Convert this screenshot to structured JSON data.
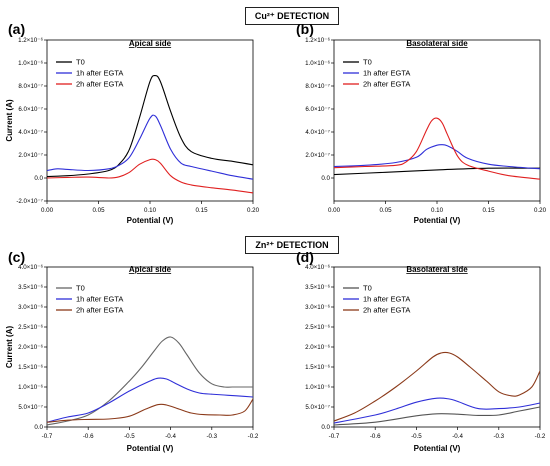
{
  "sections": {
    "cu_title": "Cu²⁺ DETECTION",
    "zn_title": "Zn²⁺ DETECTION"
  },
  "chart_data": [
    {
      "type": "line",
      "panel": "(a)",
      "title": "Apical side",
      "xlabel": "Potential (V)",
      "ylabel": "Current (A)",
      "xlim": [
        0.0,
        0.2
      ],
      "ylim": [
        -2e-07,
        1.2e-06
      ],
      "x_ticks": [
        0.0,
        0.05,
        0.1,
        0.15,
        0.2
      ],
      "x_tick_labels": [
        "0.00",
        "0.05",
        "0.10",
        "0.15",
        "0.20"
      ],
      "y_ticks": [
        -2e-07,
        0,
        2e-07,
        4e-07,
        6e-07,
        8e-07,
        1e-06,
        1.2e-06
      ],
      "y_tick_labels": [
        "-2.0×10⁻⁷",
        "0.0",
        "2.0×10⁻⁷",
        "4.0×10⁻⁷",
        "6.0×10⁻⁷",
        "8.0×10⁻⁷",
        "1.0×10⁻⁶",
        "1.2×10⁻⁶"
      ],
      "legend": "top-left",
      "series": [
        {
          "name": "T0",
          "color": "#000000",
          "x": [
            0.0,
            0.02,
            0.04,
            0.06,
            0.07,
            0.08,
            0.09,
            0.1,
            0.105,
            0.11,
            0.12,
            0.13,
            0.14,
            0.16,
            0.18,
            0.2
          ],
          "y": [
            1.2e-08,
            2e-08,
            3.5e-08,
            6.5e-08,
            1.2e-07,
            2.5e-07,
            5.3e-07,
            8.4e-07,
            8.9e-07,
            8.4e-07,
            5.8e-07,
            3.5e-07,
            2.3e-07,
            1.7e-07,
            1.45e-07,
            1.15e-07
          ]
        },
        {
          "name": "1h after EGTA",
          "color": "#2f2fd8",
          "x": [
            0.0,
            0.01,
            0.02,
            0.04,
            0.06,
            0.07,
            0.08,
            0.09,
            0.1,
            0.105,
            0.11,
            0.12,
            0.13,
            0.14,
            0.16,
            0.18,
            0.2
          ],
          "y": [
            6.5e-08,
            8e-08,
            7.5e-08,
            6.5e-08,
            8e-08,
            1.1e-07,
            1.8e-07,
            3.4e-07,
            5.2e-07,
            5.4e-07,
            4.6e-07,
            2.5e-07,
            1.3e-07,
            1e-07,
            6e-08,
            2e-08,
            -1e-08
          ]
        },
        {
          "name": "2h after EGTA",
          "color": "#e02020",
          "x": [
            0.0,
            0.02,
            0.04,
            0.06,
            0.07,
            0.08,
            0.09,
            0.1,
            0.105,
            0.11,
            0.12,
            0.13,
            0.14,
            0.16,
            0.18,
            0.2
          ],
          "y": [
            0.0,
            5e-09,
            8e-09,
            0.0,
            1e-08,
            5e-08,
            1.2e-07,
            1.6e-07,
            1.6e-07,
            1.3e-07,
            2e-08,
            -3.5e-08,
            -6e-08,
            -8.5e-08,
            -1.05e-07,
            -1.3e-07
          ]
        }
      ]
    },
    {
      "type": "line",
      "panel": "(b)",
      "title": "Basolateral side",
      "xlabel": "Potential (V)",
      "ylabel": "",
      "xlim": [
        0.0,
        0.2
      ],
      "ylim": [
        -2e-07,
        1.2e-06
      ],
      "x_ticks": [
        0.0,
        0.05,
        0.1,
        0.15,
        0.2
      ],
      "x_tick_labels": [
        "0.00",
        "0.05",
        "0.10",
        "0.15",
        "0.20"
      ],
      "y_ticks": [
        0,
        2e-07,
        4e-07,
        6e-07,
        8e-07,
        1e-06,
        1.2e-06
      ],
      "y_tick_labels": [
        "0.0",
        "2.0×10⁻⁷",
        "4.0×10⁻⁷",
        "6.0×10⁻⁷",
        "8.0×10⁻⁷",
        "1.0×10⁻⁶",
        "1.2×10⁻⁶"
      ],
      "legend": "top-left",
      "series": [
        {
          "name": "T0",
          "color": "#000000",
          "x": [
            0.0,
            0.05,
            0.1,
            0.15,
            0.2
          ],
          "y": [
            3e-08,
            5e-08,
            7e-08,
            8.5e-08,
            8.5e-08
          ]
        },
        {
          "name": "1h after EGTA",
          "color": "#2f2fd8",
          "x": [
            0.0,
            0.03,
            0.06,
            0.08,
            0.09,
            0.1,
            0.105,
            0.11,
            0.12,
            0.13,
            0.15,
            0.17,
            0.2
          ],
          "y": [
            1e-07,
            1.1e-07,
            1.35e-07,
            1.8e-07,
            2.5e-07,
            2.85e-07,
            2.9e-07,
            2.8e-07,
            2.3e-07,
            1.7e-07,
            1.2e-07,
            1e-07,
            8e-08
          ]
        },
        {
          "name": "2h after EGTA",
          "color": "#e02020",
          "x": [
            0.0,
            0.03,
            0.06,
            0.07,
            0.08,
            0.09,
            0.095,
            0.1,
            0.105,
            0.11,
            0.12,
            0.13,
            0.15,
            0.17,
            0.2
          ],
          "y": [
            9e-08,
            1e-07,
            1.1e-07,
            1.4e-07,
            2.3e-07,
            4.2e-07,
            5e-07,
            5.2e-07,
            4.8e-07,
            3.8e-07,
            1.9e-07,
            1.1e-07,
            6e-08,
            2e-08,
            -1e-08
          ]
        }
      ]
    },
    {
      "type": "line",
      "panel": "(c)",
      "title": "Apical side",
      "xlabel": "Potential (V)",
      "ylabel": "Current (A)",
      "xlim": [
        -0.7,
        -0.2
      ],
      "ylim": [
        0,
        4e-06
      ],
      "x_ticks": [
        -0.7,
        -0.6,
        -0.5,
        -0.4,
        -0.3,
        -0.2
      ],
      "x_tick_labels": [
        "-0.7",
        "-0.6",
        "-0.5",
        "-0.4",
        "-0.3",
        "-0.2"
      ],
      "y_ticks": [
        0,
        5e-07,
        1e-06,
        1.5e-06,
        2e-06,
        2.5e-06,
        3e-06,
        3.5e-06,
        4e-06
      ],
      "y_tick_labels": [
        "0.0",
        "5.0×10⁻⁷",
        "1.0×10⁻⁶",
        "1.5×10⁻⁶",
        "2.0×10⁻⁶",
        "2.5×10⁻⁶",
        "3.0×10⁻⁶",
        "3.5×10⁻⁶",
        "4.0×10⁻⁶"
      ],
      "legend": "top-left",
      "series": [
        {
          "name": "T0",
          "color": "#666666",
          "x": [
            -0.7,
            -0.65,
            -0.6,
            -0.55,
            -0.5,
            -0.47,
            -0.44,
            -0.42,
            -0.4,
            -0.38,
            -0.36,
            -0.33,
            -0.3,
            -0.27,
            -0.25,
            -0.2
          ],
          "y": [
            5e-08,
            1.5e-07,
            3e-07,
            6.5e-07,
            1.15e-06,
            1.5e-06,
            1.9e-06,
            2.15e-06,
            2.25e-06,
            2.1e-06,
            1.8e-06,
            1.35e-06,
            1.08e-06,
            1e-06,
            1e-06,
            1e-06
          ]
        },
        {
          "name": "1h after EGTA",
          "color": "#2f2fd8",
          "x": [
            -0.7,
            -0.65,
            -0.6,
            -0.55,
            -0.5,
            -0.45,
            -0.43,
            -0.41,
            -0.39,
            -0.36,
            -0.33,
            -0.3,
            -0.27,
            -0.24,
            -0.2
          ],
          "y": [
            1.2e-07,
            2.5e-07,
            3.5e-07,
            6e-07,
            9e-07,
            1.15e-06,
            1.22e-06,
            1.2e-06,
            1.1e-06,
            9.5e-07,
            8.5e-07,
            8.2e-07,
            8e-07,
            7.8e-07,
            7.5e-07
          ]
        },
        {
          "name": "2h after EGTA",
          "color": "#8b3a1a",
          "x": [
            -0.7,
            -0.65,
            -0.6,
            -0.55,
            -0.5,
            -0.46,
            -0.43,
            -0.41,
            -0.38,
            -0.35,
            -0.32,
            -0.28,
            -0.25,
            -0.22,
            -0.2
          ],
          "y": [
            1.2e-07,
            1.7e-07,
            1.9e-07,
            2e-07,
            2.7e-07,
            4.5e-07,
            5.6e-07,
            5.5e-07,
            4.5e-07,
            3.5e-07,
            3.1e-07,
            3e-07,
            3e-07,
            4e-07,
            7e-07
          ]
        }
      ]
    },
    {
      "type": "line",
      "panel": "(d)",
      "title": "Basolateral side",
      "xlabel": "Potential (V)",
      "ylabel": "",
      "xlim": [
        -0.7,
        -0.2
      ],
      "ylim": [
        0,
        4e-06
      ],
      "x_ticks": [
        -0.7,
        -0.6,
        -0.5,
        -0.4,
        -0.3,
        -0.2
      ],
      "x_tick_labels": [
        "-0.7",
        "-0.6",
        "-0.5",
        "-0.4",
        "-0.3",
        "-0.2"
      ],
      "y_ticks": [
        0,
        5e-07,
        1e-06,
        1.5e-06,
        2e-06,
        2.5e-06,
        3e-06,
        3.5e-06,
        4e-06
      ],
      "y_tick_labels": [
        "0.0",
        "5.0×10⁻⁷",
        "1.0×10⁻⁶",
        "1.5×10⁻⁶",
        "2.0×10⁻⁶",
        "2.5×10⁻⁶",
        "3.0×10⁻⁶",
        "3.5×10⁻⁶",
        "4.0×10⁻⁶"
      ],
      "legend": "top-left",
      "series": [
        {
          "name": "T0",
          "color": "#555555",
          "x": [
            -0.7,
            -0.6,
            -0.5,
            -0.45,
            -0.4,
            -0.35,
            -0.3,
            -0.25,
            -0.2
          ],
          "y": [
            5e-08,
            1.2e-07,
            2.8e-07,
            3.3e-07,
            3.2e-07,
            2.9e-07,
            3e-07,
            4e-07,
            5e-07
          ]
        },
        {
          "name": "1h after EGTA",
          "color": "#2f2fd8",
          "x": [
            -0.7,
            -0.6,
            -0.55,
            -0.5,
            -0.45,
            -0.42,
            -0.4,
            -0.35,
            -0.3,
            -0.25,
            -0.2
          ],
          "y": [
            1e-07,
            3e-07,
            4.5e-07,
            6.2e-07,
            7.2e-07,
            7e-07,
            6.4e-07,
            4.6e-07,
            4.6e-07,
            5e-07,
            6e-07
          ]
        },
        {
          "name": "2h after EGTA",
          "color": "#8b3a1a",
          "x": [
            -0.7,
            -0.65,
            -0.6,
            -0.55,
            -0.5,
            -0.46,
            -0.44,
            -0.42,
            -0.4,
            -0.37,
            -0.33,
            -0.3,
            -0.27,
            -0.25,
            -0.22,
            -0.2
          ],
          "y": [
            1.5e-07,
            3.5e-07,
            6.5e-07,
            1e-06,
            1.4e-06,
            1.75e-06,
            1.85e-06,
            1.85e-06,
            1.75e-06,
            1.5e-06,
            1.15e-06,
            8.8e-07,
            7.8e-07,
            8e-07,
            1e-06,
            1.4e-06
          ]
        }
      ]
    }
  ]
}
